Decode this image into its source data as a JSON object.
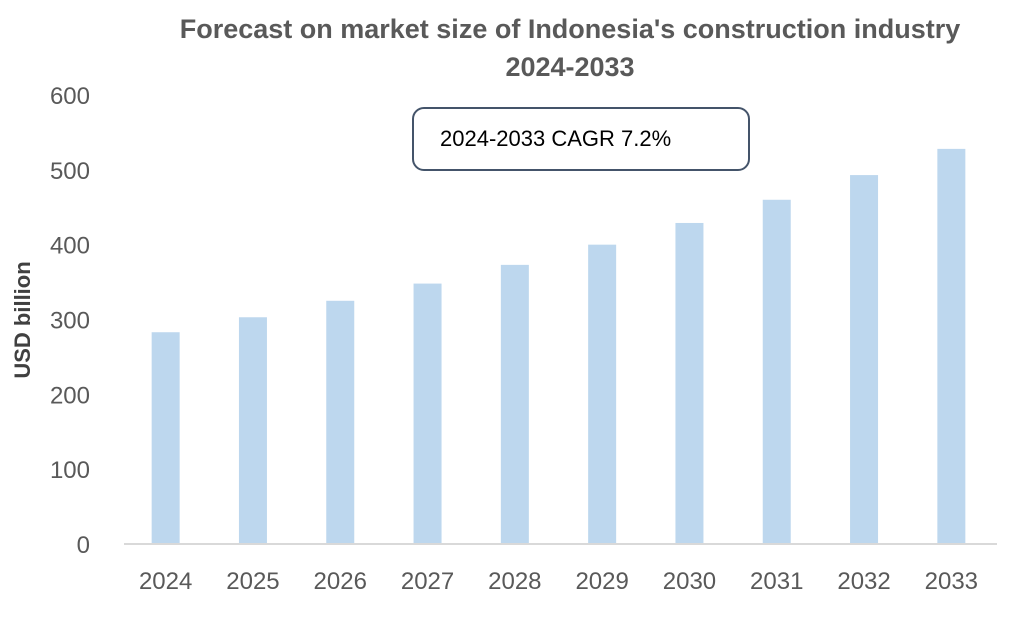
{
  "chart_data": {
    "type": "bar",
    "title": "Forecast on market size of Indonesia's construction industry",
    "subtitle": "2024-2033",
    "xlabel": "",
    "ylabel": "USD billion",
    "categories": [
      "2024",
      "2025",
      "2026",
      "2027",
      "2028",
      "2029",
      "2030",
      "2031",
      "2032",
      "2033"
    ],
    "values": [
      283,
      303,
      325,
      348,
      373,
      400,
      429,
      460,
      493,
      528
    ],
    "ylim": [
      0,
      600
    ],
    "yticks": [
      0,
      100,
      200,
      300,
      400,
      500,
      600
    ],
    "grid": false,
    "annotation": "2024-2033 CAGR 7.2%",
    "bar_color": "#bdd7ee",
    "axis_color": "#d9d9d9"
  }
}
